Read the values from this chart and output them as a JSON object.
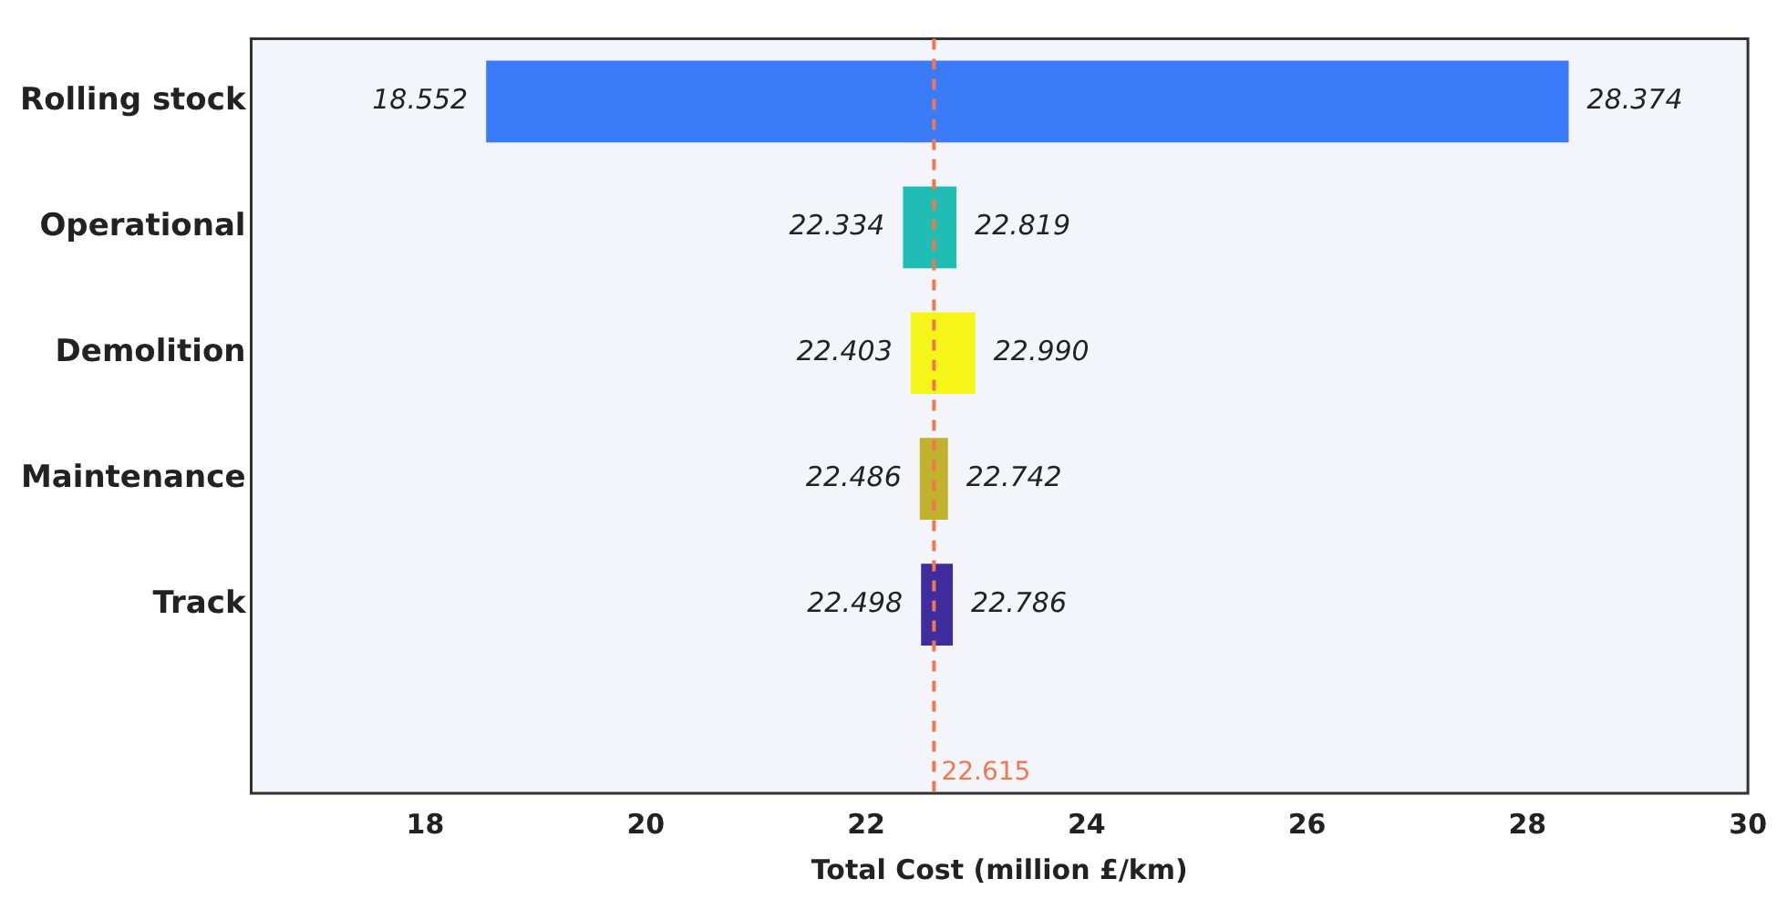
{
  "chart_data": {
    "type": "bar",
    "orientation": "horizontal",
    "xlabel": "Total Cost (million £/km)",
    "categories": [
      "Rolling stock",
      "Operational",
      "Demolition",
      "Maintenance",
      "Track"
    ],
    "base": [
      18.552,
      22.334,
      22.403,
      22.486,
      22.498
    ],
    "values": [
      9.822,
      0.485,
      0.587,
      0.256,
      0.288
    ],
    "colors": [
      "#3a7bfa",
      "#20bdb5",
      "#f5f51a",
      "#c0b22d",
      "#3f2d9e"
    ],
    "xlim": [
      16.42,
      30
    ],
    "xticks": [
      18,
      20,
      22,
      24,
      26,
      28,
      30
    ],
    "grid": false,
    "legend": false,
    "ref_lines": [
      {
        "axis": "x",
        "value": 22.615,
        "label": "22.615",
        "color": "#f07850",
        "line_style": "dashed"
      }
    ],
    "annotations": [
      {
        "text": "18.552",
        "x": 18.552,
        "y": "Rolling stock"
      },
      {
        "text": "28.374",
        "x": 28.374,
        "y": "Rolling stock"
      },
      {
        "text": "22.334",
        "x": 22.334,
        "y": "Operational"
      },
      {
        "text": "22.819",
        "x": 22.819,
        "y": "Operational"
      },
      {
        "text": "22.403",
        "x": 22.403,
        "y": "Demolition"
      },
      {
        "text": "22.990",
        "x": 22.99,
        "y": "Demolition"
      },
      {
        "text": "22.486",
        "x": 22.486,
        "y": "Maintenance"
      },
      {
        "text": "22.742",
        "x": 22.742,
        "y": "Maintenance"
      },
      {
        "text": "22.498",
        "x": 22.498,
        "y": "Track"
      },
      {
        "text": "22.786",
        "x": 22.786,
        "y": "Track"
      }
    ]
  }
}
